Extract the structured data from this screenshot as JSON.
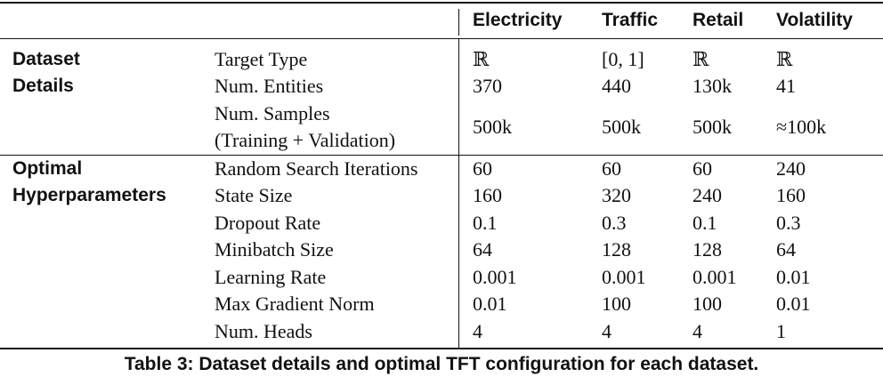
{
  "columns": [
    "Electricity",
    "Traffic",
    "Retail",
    "Volatility"
  ],
  "sections": [
    {
      "title": [
        "Dataset",
        "Details"
      ],
      "rows": [
        {
          "label": [
            "Target Type"
          ],
          "values": [
            "ℝ",
            "[0, 1]",
            "ℝ",
            "ℝ"
          ]
        },
        {
          "label": [
            "Num. Entities"
          ],
          "values": [
            "370",
            "440",
            "130k",
            "41"
          ]
        },
        {
          "label": [
            "Num. Samples",
            "(Training + Validation)"
          ],
          "values": [
            "500k",
            "500k",
            "500k",
            "≈100k"
          ]
        }
      ]
    },
    {
      "title": [
        "Optimal",
        "Hyperparameters"
      ],
      "rows": [
        {
          "label": [
            "Random Search Iterations"
          ],
          "values": [
            "60",
            "60",
            "60",
            "240"
          ]
        },
        {
          "label": [
            "State Size"
          ],
          "values": [
            "160",
            "320",
            "240",
            "160"
          ]
        },
        {
          "label": [
            "Dropout Rate"
          ],
          "values": [
            "0.1",
            "0.3",
            "0.1",
            "0.3"
          ]
        },
        {
          "label": [
            "Minibatch Size"
          ],
          "values": [
            "64",
            "128",
            "128",
            "64"
          ]
        },
        {
          "label": [
            "Learning Rate"
          ],
          "values": [
            "0.001",
            "0.001",
            "0.001",
            "0.01"
          ]
        },
        {
          "label": [
            "Max Gradient Norm"
          ],
          "values": [
            "0.01",
            "100",
            "100",
            "0.01"
          ]
        },
        {
          "label": [
            "Num. Heads"
          ],
          "values": [
            "4",
            "4",
            "4",
            "1"
          ]
        }
      ]
    }
  ],
  "caption": "Table 3: Dataset details and optimal TFT configuration for each dataset."
}
